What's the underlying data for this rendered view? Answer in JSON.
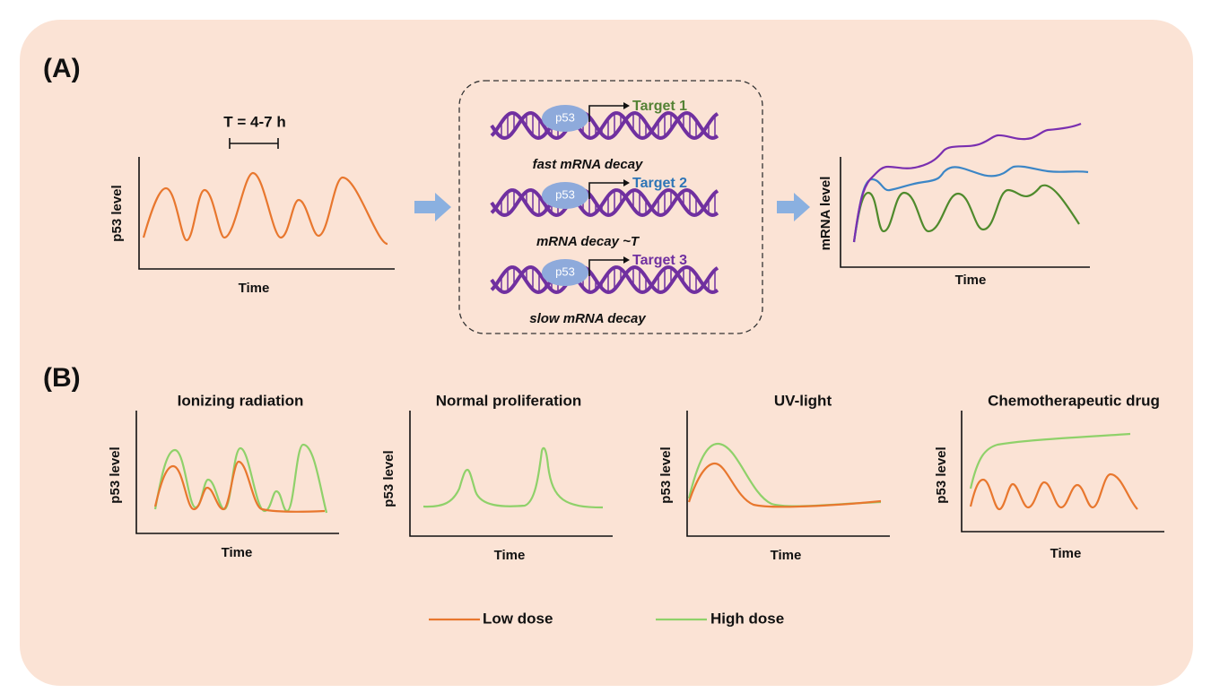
{
  "panel_a": {
    "label": "(A)",
    "period": "T = 4-7 h",
    "left_plot": {
      "y_label": "p53 level",
      "x_label": "Time"
    },
    "targets": [
      {
        "protein": "p53",
        "name": "Target 1",
        "decay": "fast mRNA decay"
      },
      {
        "protein": "p53",
        "name": "Target 2",
        "decay": "mRNA decay ~T"
      },
      {
        "protein": "p53",
        "name": "Target 3",
        "decay": "slow mRNA decay"
      }
    ],
    "right_plot": {
      "y_label": "mRNA level",
      "x_label": "Time"
    }
  },
  "panel_b": {
    "label": "(B)",
    "plots": [
      {
        "title": "Ionizing radiation",
        "y_label": "p53 level",
        "x_label": "Time"
      },
      {
        "title": "Normal proliferation",
        "y_label": "p53 level",
        "x_label": "Time"
      },
      {
        "title": "UV-light",
        "y_label": "p53 level",
        "x_label": "Time"
      },
      {
        "title": "Chemotherapeutic drug",
        "y_label": "p53 level",
        "x_label": "Time"
      }
    ]
  },
  "legend": [
    {
      "label": "Low dose"
    },
    {
      "label": "High dose"
    }
  ]
}
